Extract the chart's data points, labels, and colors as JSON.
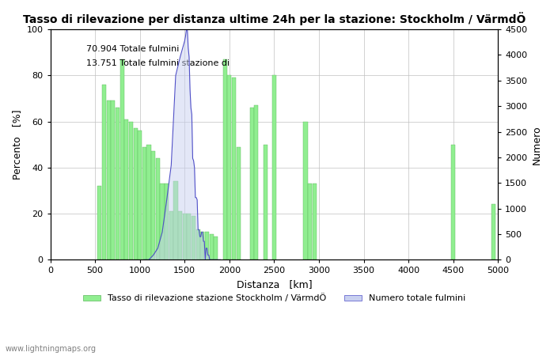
{
  "title": "Tasso di rilevazione per distanza ultime 24h per la stazione: Stockholm / VärmdÖ",
  "xlabel": "Distanza   [km]",
  "ylabel_left": "Percento   [%]",
  "ylabel_right": "Numero",
  "annotation_line1": "70.904 Totale fulmini",
  "annotation_line2": "13.751 Totale fulmini stazione di",
  "legend_green": "Tasso di rilevazione stazione Stockholm / VärmdÖ",
  "legend_blue": "Numero totale fulmini",
  "watermark": "www.lightningmaps.org",
  "xlim": [
    0,
    5000
  ],
  "ylim_left": [
    0,
    100
  ],
  "ylim_right": [
    0,
    4500
  ],
  "xticks": [
    0,
    500,
    1000,
    1500,
    2000,
    2500,
    3000,
    3500,
    4000,
    4500,
    5000
  ],
  "yticks_left": [
    0,
    20,
    40,
    60,
    80,
    100
  ],
  "yticks_right": [
    0,
    500,
    1000,
    1500,
    2000,
    2500,
    3000,
    3500,
    4000,
    4500
  ],
  "bar_color": "#90ee90",
  "bar_edge_color": "#5cb85c",
  "fill_color": "#c8d0f0",
  "line_color": "#5050c8",
  "background_color": "#ffffff",
  "grid_color": "#c0c0c0",
  "green_bars": [
    [
      50,
      0
    ],
    [
      100,
      0
    ],
    [
      150,
      0
    ],
    [
      200,
      0
    ],
    [
      250,
      0
    ],
    [
      300,
      0
    ],
    [
      350,
      0
    ],
    [
      400,
      0
    ],
    [
      450,
      0
    ],
    [
      500,
      0
    ],
    [
      550,
      32
    ],
    [
      600,
      76
    ],
    [
      650,
      69
    ],
    [
      700,
      69
    ],
    [
      750,
      66
    ],
    [
      800,
      87
    ],
    [
      850,
      61
    ],
    [
      900,
      60
    ],
    [
      950,
      57
    ],
    [
      1000,
      56
    ],
    [
      1050,
      49
    ],
    [
      1100,
      50
    ],
    [
      1150,
      47
    ],
    [
      1200,
      44
    ],
    [
      1250,
      33
    ],
    [
      1300,
      33
    ],
    [
      1350,
      21
    ],
    [
      1400,
      34
    ],
    [
      1450,
      21
    ],
    [
      1500,
      20
    ],
    [
      1550,
      20
    ],
    [
      1600,
      19
    ],
    [
      1650,
      13
    ],
    [
      1700,
      12
    ],
    [
      1750,
      12
    ],
    [
      1800,
      11
    ],
    [
      1850,
      10
    ],
    [
      1900,
      0
    ],
    [
      1950,
      87
    ],
    [
      2000,
      80
    ],
    [
      2050,
      79
    ],
    [
      2100,
      49
    ],
    [
      2150,
      0
    ],
    [
      2200,
      0
    ],
    [
      2250,
      66
    ],
    [
      2300,
      67
    ],
    [
      2350,
      0
    ],
    [
      2400,
      50
    ],
    [
      2450,
      0
    ],
    [
      2500,
      80
    ],
    [
      2550,
      0
    ],
    [
      2600,
      0
    ],
    [
      2650,
      0
    ],
    [
      2700,
      0
    ],
    [
      2750,
      0
    ],
    [
      2800,
      0
    ],
    [
      2850,
      60
    ],
    [
      2900,
      33
    ],
    [
      2950,
      33
    ],
    [
      3000,
      0
    ],
    [
      3050,
      0
    ],
    [
      3100,
      0
    ],
    [
      3150,
      0
    ],
    [
      3200,
      0
    ],
    [
      3250,
      0
    ],
    [
      3300,
      0
    ],
    [
      3350,
      0
    ],
    [
      3400,
      0
    ],
    [
      3450,
      0
    ],
    [
      3500,
      0
    ],
    [
      3550,
      0
    ],
    [
      3600,
      0
    ],
    [
      3650,
      0
    ],
    [
      3700,
      0
    ],
    [
      3750,
      0
    ],
    [
      3800,
      0
    ],
    [
      3850,
      0
    ],
    [
      3900,
      0
    ],
    [
      3950,
      0
    ],
    [
      4000,
      0
    ],
    [
      4050,
      0
    ],
    [
      4100,
      0
    ],
    [
      4150,
      0
    ],
    [
      4200,
      0
    ],
    [
      4250,
      0
    ],
    [
      4300,
      0
    ],
    [
      4350,
      0
    ],
    [
      4400,
      0
    ],
    [
      4450,
      0
    ],
    [
      4500,
      50
    ],
    [
      4550,
      0
    ],
    [
      4600,
      0
    ],
    [
      4650,
      0
    ],
    [
      4700,
      0
    ],
    [
      4750,
      0
    ],
    [
      4800,
      0
    ],
    [
      4850,
      0
    ],
    [
      4900,
      0
    ],
    [
      4950,
      24
    ]
  ],
  "blue_fill": [
    [
      1050,
      0
    ],
    [
      1100,
      0
    ],
    [
      1150,
      2
    ],
    [
      1200,
      5
    ],
    [
      1250,
      12
    ],
    [
      1300,
      26
    ],
    [
      1350,
      41
    ],
    [
      1400,
      80
    ],
    [
      1450,
      88
    ],
    [
      1500,
      95
    ],
    [
      1510,
      97
    ],
    [
      1520,
      100
    ],
    [
      1530,
      100
    ],
    [
      1540,
      92
    ],
    [
      1550,
      88
    ],
    [
      1560,
      74
    ],
    [
      1570,
      66
    ],
    [
      1580,
      63
    ],
    [
      1590,
      44
    ],
    [
      1600,
      43
    ],
    [
      1610,
      40
    ],
    [
      1620,
      27
    ],
    [
      1630,
      27
    ],
    [
      1640,
      26
    ],
    [
      1650,
      13
    ],
    [
      1660,
      13
    ],
    [
      1670,
      10
    ],
    [
      1680,
      10
    ],
    [
      1690,
      12
    ],
    [
      1700,
      12
    ],
    [
      1710,
      8
    ],
    [
      1720,
      8
    ],
    [
      1730,
      0
    ],
    [
      1740,
      5
    ],
    [
      1750,
      5
    ],
    [
      1760,
      2
    ],
    [
      1770,
      2
    ],
    [
      1780,
      0
    ],
    [
      1800,
      0
    ],
    [
      1850,
      0
    ],
    [
      1900,
      0
    ]
  ]
}
